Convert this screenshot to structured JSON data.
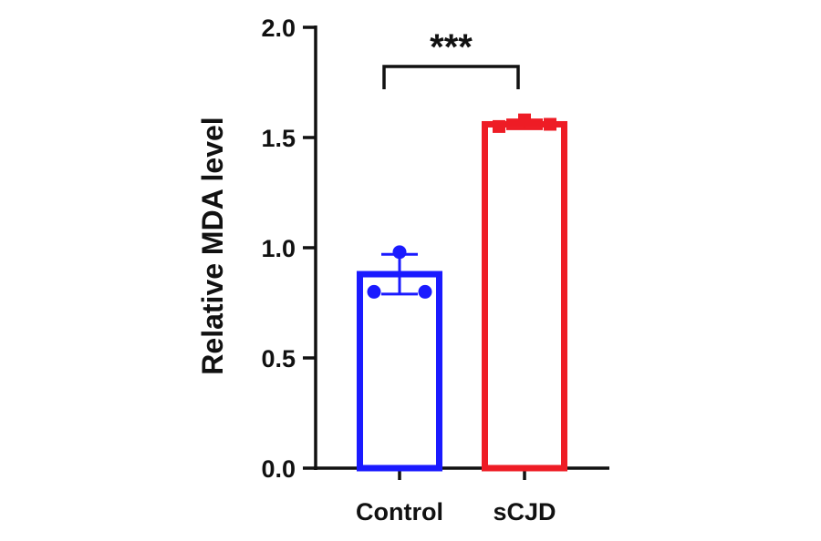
{
  "chart_data": {
    "type": "bar",
    "title": "",
    "xlabel": "",
    "ylabel": "Relative MDA level",
    "ylim": [
      0,
      2.0
    ],
    "yticks": [
      "0.0",
      "0.5",
      "1.0",
      "1.5",
      "2.0"
    ],
    "categories": [
      "Control",
      "sCJD"
    ],
    "values": [
      0.88,
      1.56
    ],
    "error": [
      0.09,
      0.02
    ],
    "points": [
      [
        0.8,
        0.98,
        0.8
      ],
      [
        1.55,
        1.58,
        1.56
      ]
    ],
    "point_markers": [
      "circle",
      "square"
    ],
    "colors": [
      "#1a1aff",
      "#ee1c25"
    ],
    "significance": {
      "label": "***",
      "between": [
        "Control",
        "sCJD"
      ]
    },
    "grid": false,
    "legend": false
  }
}
